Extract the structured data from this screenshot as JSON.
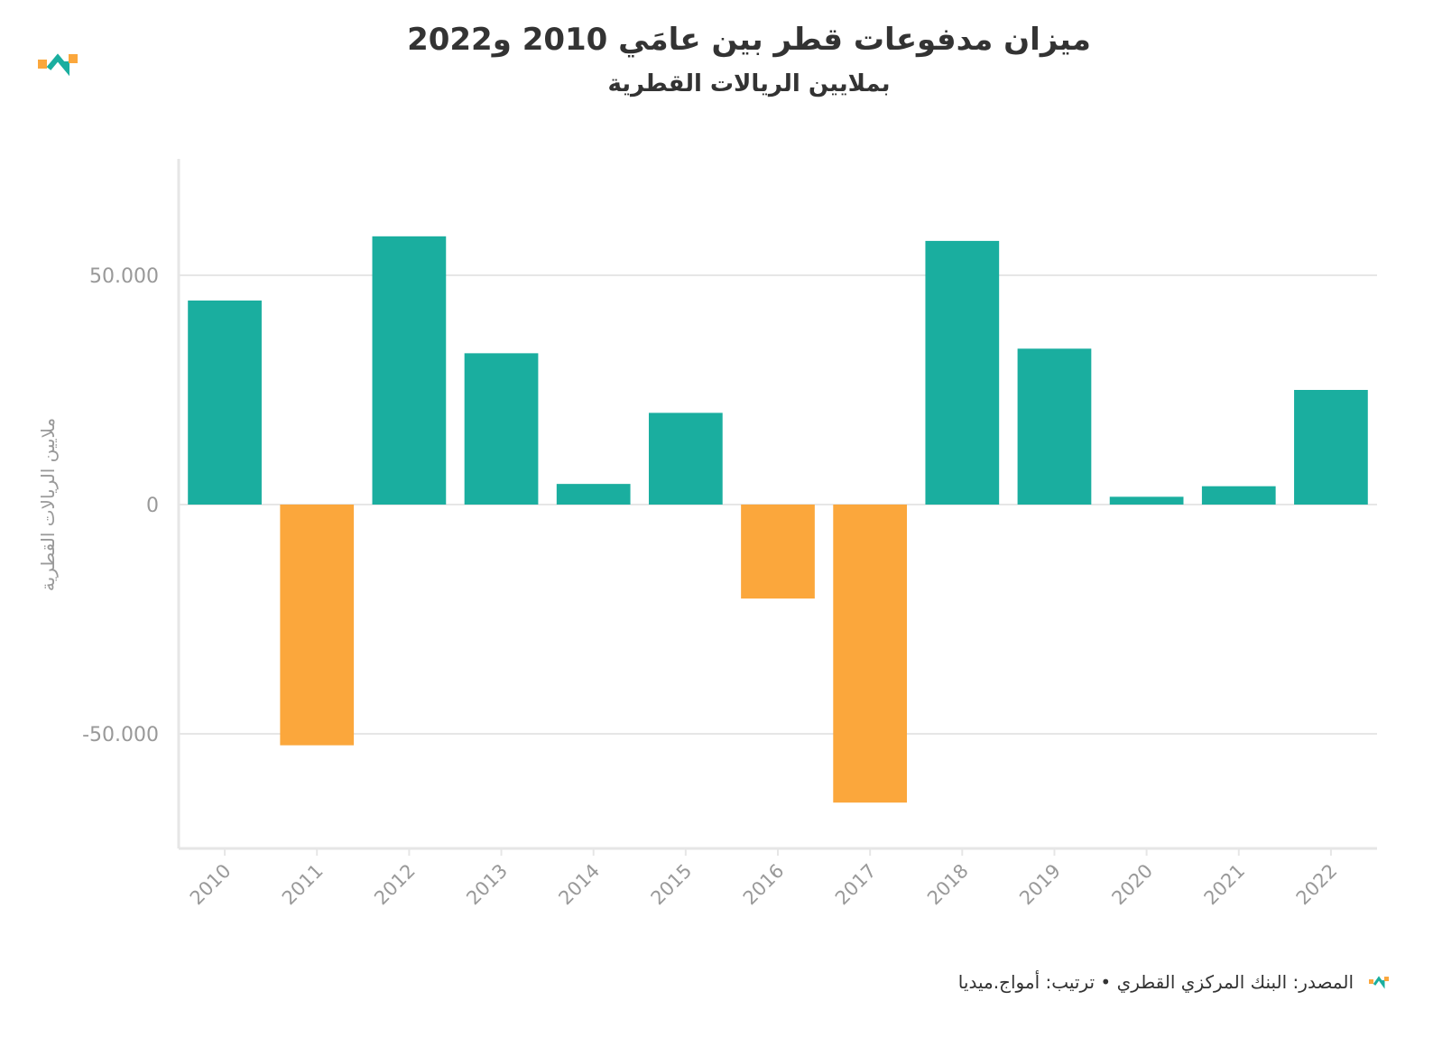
{
  "brand": {
    "logo_icon": "amwaj-logo-icon",
    "colors": {
      "orange": "#fba73c",
      "teal": "#1aae9f"
    }
  },
  "title": "ميزان مدفوعات قطر بين عامَي 2010 و2022",
  "subtitle": "بملايين الريالات القطرية",
  "footer": {
    "source_text": "المصدر: البنك المركزي القطري • ترتيب: أمواج.ميديا"
  },
  "chart_data": {
    "type": "bar",
    "categories": [
      "2010",
      "2011",
      "2012",
      "2013",
      "2014",
      "2015",
      "2016",
      "2017",
      "2018",
      "2019",
      "2020",
      "2021",
      "2022"
    ],
    "values": [
      44500,
      -52500,
      58500,
      33000,
      4500,
      20000,
      -20500,
      -65000,
      57500,
      34000,
      1700,
      4000,
      25000
    ],
    "title": "ميزان مدفوعات قطر بين عامَي 2010 و2022",
    "subtitle": "بملايين الريالات القطرية",
    "xlabel": "",
    "ylabel": "ملايين الريالات القطرية",
    "ylim": [
      -75000,
      75000
    ],
    "yticks": [
      {
        "value": 50000,
        "label": "50.000"
      },
      {
        "value": 0,
        "label": "0"
      },
      {
        "value": -50000,
        "label": "-50.000"
      }
    ],
    "grid": true,
    "colors": {
      "positive": "#1aae9f",
      "negative": "#fba73c"
    }
  }
}
